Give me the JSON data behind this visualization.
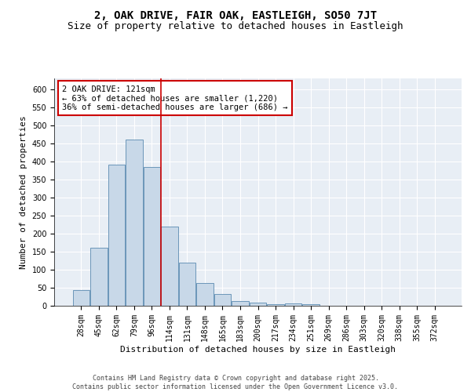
{
  "title_line1": "2, OAK DRIVE, FAIR OAK, EASTLEIGH, SO50 7JT",
  "title_line2": "Size of property relative to detached houses in Eastleigh",
  "xlabel": "Distribution of detached houses by size in Eastleigh",
  "ylabel": "Number of detached properties",
  "categories": [
    "28sqm",
    "45sqm",
    "62sqm",
    "79sqm",
    "96sqm",
    "114sqm",
    "131sqm",
    "148sqm",
    "165sqm",
    "183sqm",
    "200sqm",
    "217sqm",
    "234sqm",
    "251sqm",
    "269sqm",
    "286sqm",
    "303sqm",
    "320sqm",
    "338sqm",
    "355sqm",
    "372sqm"
  ],
  "bar_values": [
    43,
    160,
    390,
    460,
    385,
    220,
    120,
    62,
    32,
    14,
    9,
    4,
    6,
    5,
    1,
    0,
    0,
    0,
    0,
    0,
    0
  ],
  "bar_color": "#c8d8e8",
  "bar_edgecolor": "#5a8ab0",
  "ylim": [
    0,
    630
  ],
  "yticks": [
    0,
    50,
    100,
    150,
    200,
    250,
    300,
    350,
    400,
    450,
    500,
    550,
    600
  ],
  "vline_color": "#cc0000",
  "annotation_text": "2 OAK DRIVE: 121sqm\n← 63% of detached houses are smaller (1,220)\n36% of semi-detached houses are larger (686) →",
  "annotation_box_color": "#ffffff",
  "annotation_box_edgecolor": "#cc0000",
  "bg_color": "#e8eef5",
  "footer_text": "Contains HM Land Registry data © Crown copyright and database right 2025.\nContains public sector information licensed under the Open Government Licence v3.0.",
  "title_fontsize": 10,
  "subtitle_fontsize": 9,
  "label_fontsize": 8,
  "tick_fontsize": 7,
  "footer_fontsize": 6
}
